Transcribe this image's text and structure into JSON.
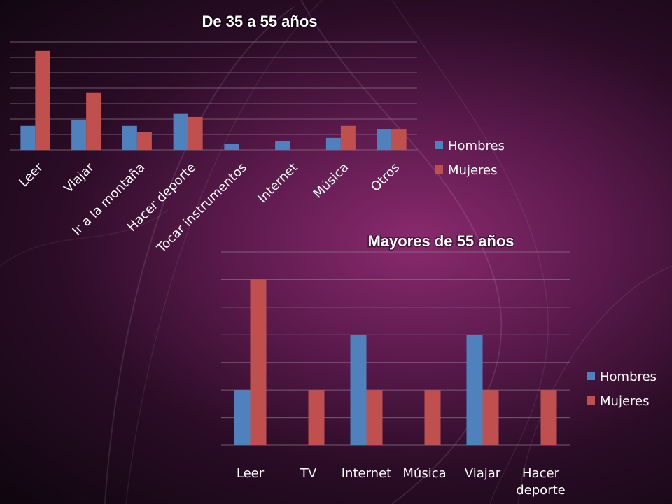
{
  "colors": {
    "hombres": "#4f81bd",
    "mujeres": "#c0504d"
  },
  "chart_data": [
    {
      "type": "bar",
      "title": "De 35 a 55 años",
      "categories": [
        "Leer",
        "Viajar",
        "Ir a la montaña",
        "Hacer deporte",
        "Tocar instrumentos",
        "Internet",
        "Música",
        "Otros"
      ],
      "series": [
        {
          "name": "Hombres",
          "values": [
            8,
            10,
            8,
            12,
            2,
            3,
            4,
            7
          ]
        },
        {
          "name": "Mujeres",
          "values": [
            33,
            19,
            6,
            11,
            0,
            0,
            8,
            7
          ]
        }
      ],
      "ylim": [
        0,
        36
      ],
      "grid": true,
      "legend": "right",
      "xlabel": "",
      "ylabel": ""
    },
    {
      "type": "bar",
      "title": "Mayores de 55 años",
      "categories": [
        "Leer",
        "TV",
        "Internet",
        "Música",
        "Viajar",
        "Hacer deporte"
      ],
      "series": [
        {
          "name": "Hombres",
          "values": [
            1,
            0,
            2,
            0,
            2,
            0
          ]
        },
        {
          "name": "Mujeres",
          "values": [
            3,
            1,
            1,
            1,
            1,
            1
          ]
        }
      ],
      "ylim": [
        0,
        3.5
      ],
      "grid": true,
      "legend": "right",
      "xlabel": "",
      "ylabel": ""
    }
  ]
}
